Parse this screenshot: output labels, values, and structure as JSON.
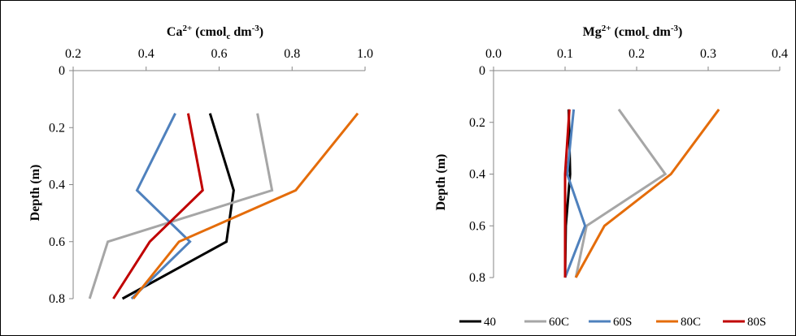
{
  "chart_data": [
    {
      "type": "line",
      "title_main": "Ca",
      "title_sup": "2+",
      "title_rest1": " (cmol",
      "title_sub": "c",
      "title_rest2": " dm",
      "title_sup2": "-3",
      "title_end": ")",
      "ylabel": "Depth (m)",
      "xlim": [
        0.2,
        1.0
      ],
      "ylim": [
        0,
        0.8
      ],
      "x_ticks": [
        "0.2",
        "0.4",
        "0.6",
        "0.8",
        "1.0"
      ],
      "y_ticks": [
        "0",
        "0.2",
        "0.4",
        "0.6",
        "0.8"
      ],
      "y_inverted": true,
      "x_axis_position": "top",
      "series": [
        {
          "name": "40",
          "color": "#000000",
          "x": [
            0.575,
            0.64,
            0.62,
            0.335
          ],
          "y": [
            0.15,
            0.42,
            0.6,
            0.8
          ]
        },
        {
          "name": "60C",
          "color": "#a6a6a6",
          "x": [
            0.705,
            0.745,
            0.295,
            0.245
          ],
          "y": [
            0.15,
            0.42,
            0.6,
            0.8
          ]
        },
        {
          "name": "60S",
          "color": "#4f81bd",
          "x": [
            0.48,
            0.375,
            0.52,
            0.36
          ],
          "y": [
            0.15,
            0.42,
            0.6,
            0.8
          ]
        },
        {
          "name": "80C",
          "color": "#e46c0a",
          "x": [
            0.98,
            0.81,
            0.49,
            0.365
          ],
          "y": [
            0.15,
            0.42,
            0.6,
            0.8
          ]
        },
        {
          "name": "80S",
          "color": "#c00000",
          "x": [
            0.515,
            0.555,
            0.41,
            0.31
          ],
          "y": [
            0.15,
            0.42,
            0.6,
            0.8
          ]
        }
      ]
    },
    {
      "type": "line",
      "title_main": "Mg",
      "title_sup": "2+",
      "title_rest1": " (cmol",
      "title_sub": "c",
      "title_rest2": " dm",
      "title_sup2": "-3",
      "title_end": ")",
      "ylabel": "Depth (m)",
      "xlim": [
        0.0,
        0.4
      ],
      "ylim": [
        0,
        0.8
      ],
      "x_ticks": [
        "0.0",
        "0.1",
        "0.2",
        "0.3",
        "0.4"
      ],
      "y_ticks": [
        "0",
        "0.2",
        "0.4",
        "0.6",
        "0.8"
      ],
      "y_inverted": true,
      "x_axis_position": "top",
      "series": [
        {
          "name": "40",
          "color": "#000000",
          "x": [
            0.105,
            0.107,
            0.101,
            0.1
          ],
          "y": [
            0.15,
            0.4,
            0.6,
            0.8
          ]
        },
        {
          "name": "60C",
          "color": "#a6a6a6",
          "x": [
            0.175,
            0.24,
            0.13,
            0.115
          ],
          "y": [
            0.15,
            0.4,
            0.6,
            0.8
          ]
        },
        {
          "name": "60S",
          "color": "#4f81bd",
          "x": [
            0.112,
            0.103,
            0.128,
            0.1
          ],
          "y": [
            0.15,
            0.4,
            0.6,
            0.8
          ]
        },
        {
          "name": "80C",
          "color": "#e46c0a",
          "x": [
            0.315,
            0.248,
            0.155,
            0.115
          ],
          "y": [
            0.15,
            0.4,
            0.6,
            0.8
          ]
        },
        {
          "name": "80S",
          "color": "#c00000",
          "x": [
            0.106,
            0.1,
            0.1,
            0.1
          ],
          "y": [
            0.15,
            0.4,
            0.6,
            0.8
          ]
        }
      ]
    }
  ],
  "legend": {
    "placement": "bottom-right",
    "items": [
      {
        "label": "40",
        "color": "#000000"
      },
      {
        "label": "60C",
        "color": "#a6a6a6"
      },
      {
        "label": "60S",
        "color": "#4f81bd"
      },
      {
        "label": "80C",
        "color": "#e46c0a"
      },
      {
        "label": "80S",
        "color": "#c00000"
      }
    ]
  }
}
